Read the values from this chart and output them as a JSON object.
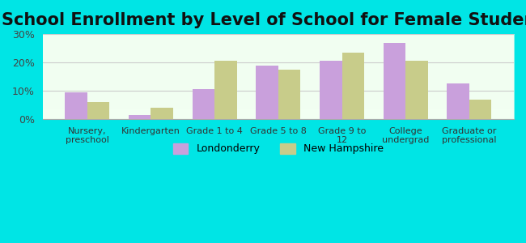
{
  "title": "School Enrollment by Level of School for Female Students",
  "categories": [
    "Nursery,\npreschool",
    "Kindergarten",
    "Grade 1 to 4",
    "Grade 5 to 8",
    "Grade 9 to\n12",
    "College\nundergrad",
    "Graduate or\nprofessional"
  ],
  "londonderry": [
    9.5,
    1.5,
    10.5,
    19.0,
    20.5,
    27.0,
    12.5
  ],
  "new_hampshire": [
    6.0,
    4.0,
    20.5,
    17.5,
    23.5,
    20.5,
    7.0
  ],
  "londonderry_color": "#c9a0dc",
  "new_hampshire_color": "#c8cc8a",
  "background_color": "#00e5e5",
  "plot_bg_start": "#f5fff5",
  "plot_bg_end": "#e8f5e0",
  "ylim": [
    0,
    30
  ],
  "yticks": [
    0,
    10,
    20,
    30
  ],
  "ytick_labels": [
    "0%",
    "10%",
    "20%",
    "30%"
  ],
  "title_fontsize": 15,
  "legend_labels": [
    "Londonderry",
    "New Hampshire"
  ],
  "bar_width": 0.35,
  "grid_color": "#cccccc"
}
